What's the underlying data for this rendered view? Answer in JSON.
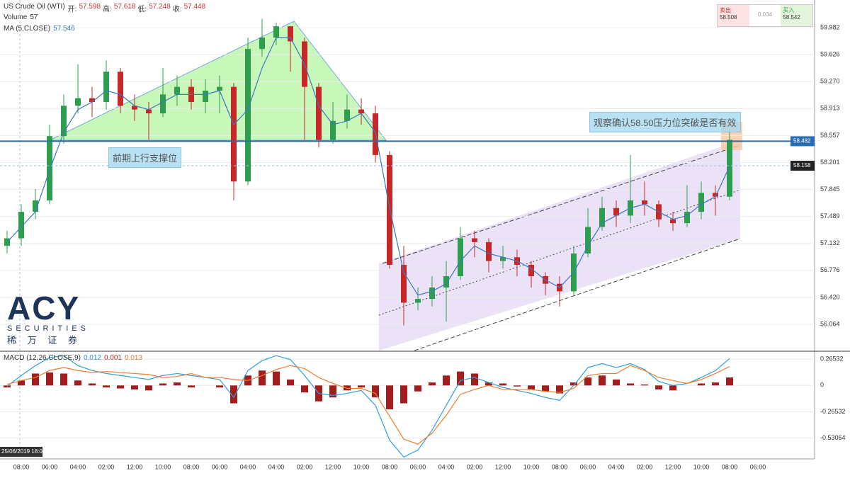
{
  "chart_data": [
    {
      "type": "candlestick",
      "title": "US Crude Oil (WTI)",
      "ohlc_header": [
        {
          "label": "开:",
          "value": 57.598
        },
        {
          "label": "高:",
          "value": 57.618
        },
        {
          "label": "低:",
          "value": 57.248
        },
        {
          "label": "收:",
          "value": 57.448
        }
      ],
      "volume_label": "Volume",
      "volume_value": 57,
      "ma_label": "MA (5,CLOSE)",
      "ma_value": 57.546,
      "categories": [
        null,
        "08:00",
        null,
        "06:00",
        null,
        "04:00",
        null,
        "02:00",
        null,
        "12:00",
        null,
        "10:00",
        null,
        "08:00",
        null,
        "06:00",
        null,
        "04:00",
        null,
        "04:00",
        null,
        "02:00",
        null,
        "12:00",
        null,
        "10:00",
        null,
        "08:00",
        null,
        "06:00",
        null,
        "04:00",
        null,
        "02:00",
        null,
        "12:00",
        null,
        "10:00",
        null,
        "08:00",
        null,
        "06:00",
        null,
        "04:00",
        null,
        "02:00",
        null,
        "12:00",
        null,
        "10:00",
        null,
        "08:00",
        null,
        "06:00",
        null,
        null,
        null,
        null
      ],
      "open": [
        57.1,
        57.2,
        57.55,
        57.7,
        58.55,
        58.95,
        59.05,
        59.0,
        59.4,
        58.95,
        58.9,
        58.85,
        59.1,
        59.2,
        59.0,
        59.15,
        59.2,
        57.95,
        59.7,
        59.85,
        60.0,
        59.8,
        59.2,
        58.5,
        58.75,
        58.9,
        58.85,
        58.3,
        56.85,
        56.35,
        56.4,
        56.55,
        56.7,
        57.2,
        57.15,
        56.9,
        56.95,
        56.85,
        56.7,
        56.6,
        56.5,
        57.0,
        57.35,
        57.6,
        57.5,
        57.7,
        57.65,
        57.45,
        57.4,
        57.55,
        57.8,
        57.75,
        null,
        null,
        null,
        null,
        null,
        null
      ],
      "high": [
        57.3,
        57.65,
        57.85,
        58.7,
        59.1,
        59.5,
        59.2,
        59.55,
        59.45,
        59.1,
        59.0,
        59.45,
        59.35,
        59.3,
        59.3,
        59.35,
        59.25,
        59.85,
        60.1,
        60.05,
        60.0,
        59.85,
        59.25,
        59.0,
        59.1,
        59.05,
        58.95,
        58.35,
        57.1,
        56.55,
        56.7,
        56.9,
        57.35,
        57.3,
        57.2,
        57.1,
        57.05,
        56.9,
        56.75,
        56.7,
        57.1,
        57.6,
        57.75,
        57.7,
        58.3,
        57.95,
        57.7,
        57.55,
        57.9,
        57.95,
        57.9,
        58.65,
        null,
        null,
        null,
        null,
        null,
        null
      ],
      "low": [
        57.0,
        57.1,
        57.45,
        57.65,
        58.45,
        58.85,
        58.8,
        58.9,
        58.85,
        58.75,
        58.5,
        58.8,
        58.95,
        58.9,
        58.85,
        58.85,
        57.7,
        57.9,
        59.6,
        59.75,
        59.4,
        58.5,
        58.4,
        58.45,
        58.65,
        58.7,
        58.2,
        56.8,
        56.05,
        56.25,
        56.3,
        56.1,
        56.65,
        56.95,
        56.75,
        56.8,
        56.7,
        56.55,
        56.45,
        56.3,
        56.45,
        56.95,
        57.3,
        57.35,
        57.4,
        57.5,
        57.35,
        57.3,
        57.35,
        57.45,
        57.5,
        57.7,
        null,
        null,
        null,
        null,
        null,
        null
      ],
      "close": [
        57.2,
        57.55,
        57.7,
        58.55,
        58.95,
        59.05,
        59.0,
        59.4,
        58.95,
        58.9,
        58.85,
        59.1,
        59.2,
        59.0,
        59.15,
        59.2,
        57.95,
        59.7,
        59.85,
        60.0,
        59.8,
        59.2,
        58.5,
        58.75,
        58.9,
        58.85,
        58.3,
        56.85,
        56.35,
        56.4,
        56.55,
        56.7,
        57.2,
        57.15,
        56.9,
        56.95,
        56.85,
        56.7,
        56.6,
        56.5,
        57.0,
        57.35,
        57.6,
        57.5,
        57.7,
        57.65,
        57.45,
        57.4,
        57.55,
        57.8,
        57.75,
        58.5,
        null,
        null,
        null,
        null,
        null,
        null
      ],
      "up_color": "#2e9e4e",
      "down_color": "#c62828",
      "ma": {
        "color": "#3a78c3",
        "values": [
          57.15,
          57.35,
          57.55,
          58.1,
          58.6,
          58.9,
          59.0,
          59.15,
          59.1,
          58.95,
          58.9,
          59.0,
          59.1,
          59.1,
          59.1,
          59.15,
          58.7,
          58.9,
          59.45,
          59.85,
          59.85,
          59.5,
          58.95,
          58.7,
          58.75,
          58.85,
          58.6,
          57.6,
          56.75,
          56.45,
          56.5,
          56.6,
          56.9,
          57.1,
          57.0,
          56.95,
          56.9,
          56.8,
          56.65,
          56.55,
          56.75,
          57.1,
          57.4,
          57.5,
          57.6,
          57.65,
          57.55,
          57.45,
          57.5,
          57.65,
          57.75,
          58.15,
          null,
          null,
          null,
          null,
          null,
          null
        ]
      },
      "ylim": [
        55.718,
        60.347
      ],
      "yticks": [
        56.064,
        {
          "value": 56.42,
          "label": "56.420"
        },
        56.776,
        57.132,
        57.489,
        57.845,
        58.201,
        58.557,
        58.913,
        {
          "value": 59.27,
          "label": "59.270"
        },
        59.626,
        59.982
      ],
      "grid": true,
      "price_labels": [
        {
          "value": 58.482,
          "color": "#2a6cb0"
        },
        {
          "value": 58.158,
          "color": "#222222"
        }
      ],
      "annotations": [
        "前期上行支撑位",
        "观察确认58.50压力位突破是否有效"
      ],
      "quote": {
        "sell_label": "卖出",
        "sell": 58.508,
        "spread": 0.034,
        "buy_label": "买入",
        "buy": 58.542
      }
    },
    {
      "type": "macd",
      "title": "MACD (12,26,CLOSE,9)",
      "header_values": [
        {
          "value": 0.012,
          "color": "#2f8fd8"
        },
        {
          "value": 0.001,
          "color": "#c62828"
        },
        {
          "value": 0.013,
          "color": "#e07b30"
        }
      ],
      "histogram": {
        "color": "#a31d1d",
        "values": [
          -0.02,
          0.05,
          0.12,
          0.13,
          0.12,
          0.05,
          0.02,
          -0.02,
          -0.03,
          -0.04,
          -0.05,
          0.02,
          0.03,
          -0.02,
          0.0,
          -0.02,
          -0.18,
          0.1,
          0.15,
          0.14,
          0.06,
          -0.07,
          -0.16,
          -0.12,
          -0.05,
          -0.02,
          -0.12,
          -0.24,
          -0.18,
          -0.06,
          0.03,
          0.1,
          0.14,
          0.12,
          0.03,
          0.02,
          -0.01,
          -0.04,
          -0.06,
          -0.08,
          0.03,
          0.08,
          0.1,
          0.06,
          0.02,
          0.01,
          -0.04,
          -0.05,
          0.0,
          0.02,
          0.03,
          0.08,
          null,
          null,
          null,
          null,
          null,
          null
        ]
      },
      "series": [
        {
          "color": "#2f9fe0",
          "values": [
            -0.01,
            0.1,
            0.2,
            0.28,
            0.3,
            0.2,
            0.15,
            0.12,
            0.1,
            0.08,
            0.06,
            0.1,
            0.12,
            0.1,
            0.08,
            0.06,
            -0.12,
            0.15,
            0.25,
            0.3,
            0.26,
            0.1,
            -0.08,
            -0.1,
            -0.08,
            -0.05,
            -0.2,
            -0.55,
            -0.72,
            -0.65,
            -0.45,
            -0.2,
            0.05,
            0.08,
            0.03,
            -0.02,
            -0.05,
            -0.08,
            -0.12,
            -0.15,
            0.0,
            0.18,
            0.22,
            0.18,
            0.22,
            0.16,
            0.04,
            0.0,
            0.02,
            0.08,
            0.15,
            0.27,
            null,
            null,
            null,
            null,
            null,
            null
          ]
        },
        {
          "color": "#ec7d31",
          "values": [
            0.01,
            0.05,
            0.08,
            0.15,
            0.18,
            0.15,
            0.13,
            0.14,
            0.13,
            0.12,
            0.11,
            0.08,
            0.09,
            0.12,
            0.08,
            0.08,
            0.06,
            0.05,
            0.1,
            0.16,
            0.2,
            0.17,
            0.08,
            0.02,
            -0.03,
            -0.03,
            -0.08,
            -0.31,
            -0.54,
            -0.59,
            -0.48,
            -0.3,
            -0.09,
            -0.04,
            0.0,
            -0.04,
            -0.04,
            -0.04,
            -0.06,
            -0.07,
            -0.03,
            0.1,
            0.12,
            0.12,
            0.2,
            0.15,
            0.08,
            0.05,
            0.02,
            0.06,
            0.12,
            0.19,
            null,
            null,
            null,
            null,
            null,
            null
          ]
        }
      ],
      "ylim": [
        -0.7386,
        0.337
      ],
      "yticks": [
        0.26532,
        0,
        -0.26532,
        -0.53064
      ],
      "crosshair_label": "25/06/2019  18:00"
    }
  ],
  "logo": {
    "name": "ACY",
    "tagline": "SECURITIES",
    "chinese": "稀 万 证 券"
  }
}
